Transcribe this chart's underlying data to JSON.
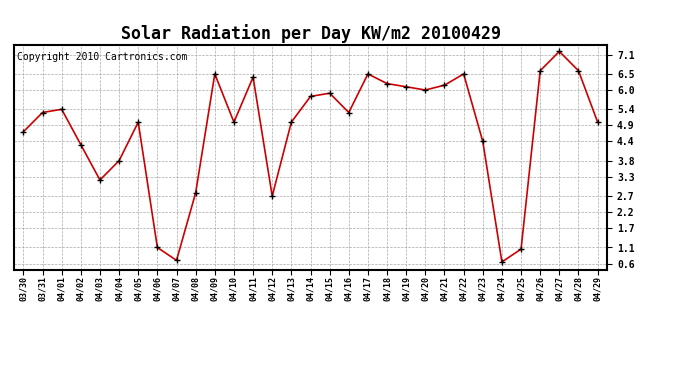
{
  "title": "Solar Radiation per Day KW/m2 20100429",
  "copyright": "Copyright 2010 Cartronics.com",
  "dates": [
    "03/30",
    "03/31",
    "04/01",
    "04/02",
    "04/03",
    "04/04",
    "04/05",
    "04/06",
    "04/07",
    "04/08",
    "04/09",
    "04/10",
    "04/11",
    "04/12",
    "04/13",
    "04/14",
    "04/15",
    "04/16",
    "04/17",
    "04/18",
    "04/19",
    "04/20",
    "04/21",
    "04/22",
    "04/23",
    "04/24",
    "04/25",
    "04/26",
    "04/27",
    "04/28",
    "04/29"
  ],
  "values": [
    4.7,
    5.3,
    5.4,
    4.3,
    3.2,
    3.8,
    5.0,
    1.1,
    0.7,
    2.8,
    6.5,
    5.0,
    6.4,
    2.7,
    5.0,
    5.8,
    5.9,
    5.3,
    6.5,
    6.2,
    6.1,
    6.0,
    6.15,
    6.5,
    4.4,
    0.65,
    1.05,
    6.6,
    7.2,
    6.6,
    5.0
  ],
  "yticks": [
    0.6,
    1.1,
    1.7,
    2.2,
    2.7,
    3.3,
    3.8,
    4.4,
    4.9,
    5.4,
    6.0,
    6.5,
    7.1
  ],
  "ylim": [
    0.4,
    7.4
  ],
  "line_color": "#cc0000",
  "marker_color": "#000000",
  "bg_color": "#ffffff",
  "grid_color": "#aaaaaa",
  "title_fontsize": 12,
  "copyright_fontsize": 7,
  "tick_fontsize": 7,
  "xtick_fontsize": 6
}
